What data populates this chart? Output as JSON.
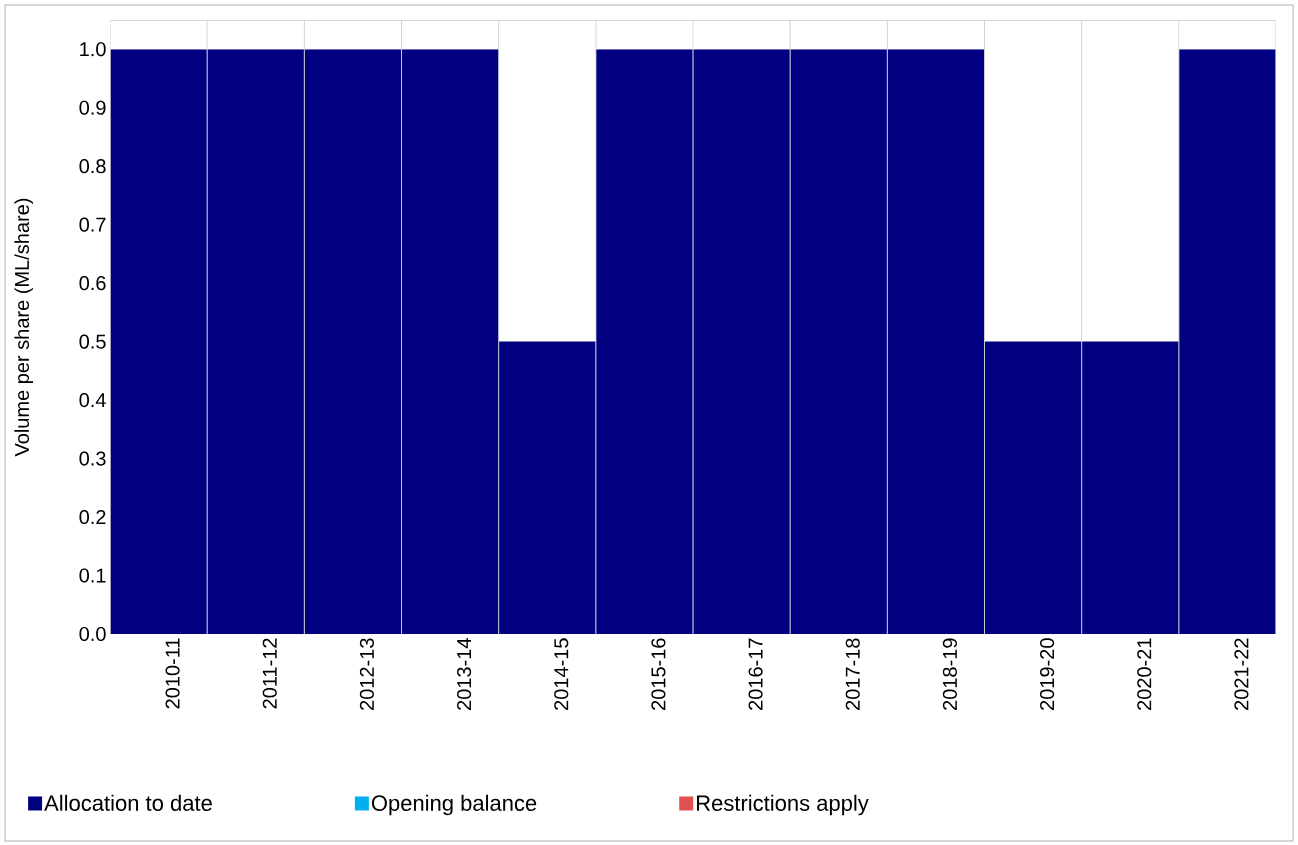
{
  "chart_data": {
    "type": "bar",
    "ylabel": "Volume per share (ML/share)",
    "categories": [
      "2010-11",
      "2011-12",
      "2012-13",
      "2013-14",
      "2014-15",
      "2015-16",
      "2016-17",
      "2017-18",
      "2018-19",
      "2019-20",
      "2020-21",
      "2021-22"
    ],
    "series": [
      {
        "name": "Allocation to date",
        "color": "#000080",
        "values": [
          1.0,
          1.0,
          1.0,
          1.0,
          0.5,
          1.0,
          1.0,
          1.0,
          1.0,
          0.5,
          0.5,
          1.0
        ]
      },
      {
        "name": "Opening balance",
        "color": "#00b0f0",
        "values": [
          null,
          null,
          null,
          null,
          null,
          null,
          null,
          null,
          null,
          null,
          null,
          null
        ]
      },
      {
        "name": "Restrictions apply",
        "color": "#e05050",
        "values": [
          null,
          null,
          null,
          null,
          null,
          null,
          null,
          null,
          null,
          null,
          null,
          null
        ]
      }
    ],
    "stacked": true,
    "ylim": [
      0,
      1.05
    ],
    "yticks": [
      {
        "value": 0,
        "label": "0.0"
      },
      {
        "value": 0.1,
        "label": "0.1"
      },
      {
        "value": 0.2,
        "label": "0.2"
      },
      {
        "value": 0.3,
        "label": "0.3"
      },
      {
        "value": 0.4,
        "label": "0.4"
      },
      {
        "value": 0.5,
        "label": "0.5"
      },
      {
        "value": 0.6,
        "label": "0.6"
      },
      {
        "value": 0.7,
        "label": "0.7"
      },
      {
        "value": 0.8,
        "label": "0.8"
      },
      {
        "value": 0.9,
        "label": "0.9"
      },
      {
        "value": 1,
        "label": "1.0"
      }
    ],
    "grid": "x",
    "legend": "bottom"
  }
}
